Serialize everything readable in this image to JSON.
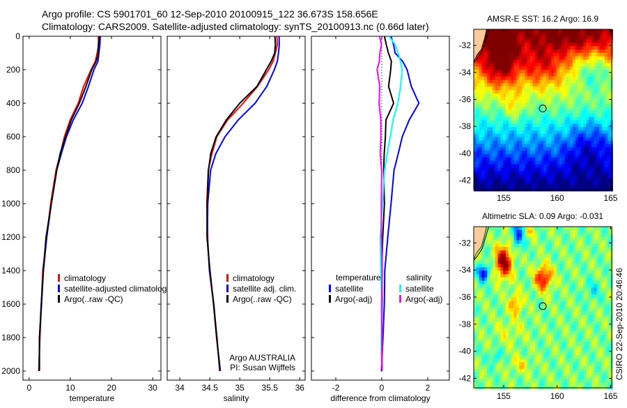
{
  "header": {
    "line1": "Argo profile: CS 5901701_60 12-Sep-2010 20100915_122 36.673S 158.656E",
    "line2": "Climatology: CARS2009. Satellite-adjusted climatology: synTS_20100913.nc (0.66d later)"
  },
  "credit": "CSIRO 22-Sep-2010 20:46:46",
  "colors": {
    "red": "#ff0000",
    "blue": "#0000ff",
    "black": "#000000",
    "cyan": "#00ffff",
    "magenta": "#ff00ff"
  },
  "chart_data": [
    {
      "type": "line",
      "xlabel": "temperature",
      "ylabel": "",
      "xlim": [
        -1.5,
        32
      ],
      "ylim": [
        2054,
        0
      ],
      "xticks": [
        "0",
        "10",
        "20",
        "30"
      ],
      "xtick_values": [
        0,
        10,
        20,
        30
      ],
      "yticks": [
        "0",
        "200",
        "400",
        "600",
        "800",
        "1000",
        "1200",
        "1400",
        "1600",
        "1800",
        "2000"
      ],
      "ytick_values": [
        0,
        200,
        400,
        600,
        800,
        1000,
        1200,
        1400,
        1600,
        1800,
        2000
      ],
      "depth": [
        0,
        50,
        100,
        150,
        200,
        300,
        400,
        500,
        600,
        700,
        800,
        1000,
        1200,
        1400,
        1600,
        1800,
        2000
      ],
      "series": [
        {
          "name": "climatology",
          "color": "#ff0000",
          "values": [
            16.8,
            16.8,
            16.6,
            16,
            15,
            13.3,
            11.8,
            10,
            8.6,
            7.5,
            6.6,
            5.2,
            4.2,
            3.4,
            2.9,
            2.6,
            2.4
          ]
        },
        {
          "name": "satellite-adjusted climatology",
          "color": "#0000ff",
          "values": [
            17.2,
            17.2,
            17,
            16.6,
            15.8,
            14.4,
            12.8,
            10.8,
            9,
            7.8,
            6.8,
            5.3,
            4.3,
            3.5,
            2.9,
            2.6,
            2.4
          ]
        },
        {
          "name": "Argo(..raw -QC)",
          "color": "#000000",
          "values": [
            16.9,
            16.9,
            16.8,
            16.2,
            15.3,
            13.7,
            12.2,
            10.3,
            8.7,
            7.6,
            6.7,
            5.3,
            4.2,
            3.4,
            2.9,
            2.6,
            2.4
          ]
        }
      ],
      "legend": {
        "placement": "lower-center",
        "header_left": "",
        "header_right": ""
      },
      "annotations": []
    },
    {
      "type": "line",
      "xlabel": "salinity",
      "xlim": [
        33.79,
        36.09
      ],
      "ylim": [
        2054,
        0
      ],
      "xticks": [
        "34",
        "34.5",
        "35",
        "35.5",
        "36"
      ],
      "xtick_values": [
        34,
        34.5,
        35,
        35.5,
        36
      ],
      "depth": [
        0,
        50,
        100,
        150,
        200,
        300,
        400,
        500,
        600,
        700,
        800,
        1000,
        1200,
        1400,
        1600,
        1800,
        2000
      ],
      "series": [
        {
          "name": "climatology",
          "color": "#ff0000",
          "values": [
            35.62,
            35.62,
            35.6,
            35.55,
            35.48,
            35.3,
            35.05,
            34.8,
            34.62,
            34.53,
            34.48,
            34.45,
            34.46,
            34.5,
            34.56,
            34.62,
            34.67
          ]
        },
        {
          "name": "satellite adj. clim.",
          "color": "#0000ff",
          "values": [
            35.65,
            35.66,
            35.65,
            35.62,
            35.58,
            35.45,
            35.25,
            34.98,
            34.75,
            34.6,
            34.52,
            34.46,
            34.46,
            34.5,
            34.56,
            34.62,
            34.67
          ]
        },
        {
          "name": "Argo(..raw -QC)",
          "color": "#000000",
          "values": [
            35.58,
            35.6,
            35.58,
            35.52,
            35.45,
            35.28,
            35.0,
            34.78,
            34.6,
            34.52,
            34.48,
            34.45,
            34.46,
            34.5,
            34.56,
            34.62,
            34.67
          ]
        }
      ],
      "legend": {
        "placement": "lower-right"
      },
      "annotations": [
        "Argo AUSTRALIA",
        "PI: Susan Wijffels"
      ]
    },
    {
      "type": "line",
      "xlabel": "difference from climatology",
      "xlim": [
        -3.06,
        2.94
      ],
      "ylim": [
        2054,
        0
      ],
      "xticks": [
        "-2",
        "0",
        "2"
      ],
      "xtick_values": [
        -2,
        0,
        2
      ],
      "depth": [
        0,
        50,
        100,
        150,
        200,
        300,
        400,
        500,
        600,
        700,
        800,
        1000,
        1200,
        1400,
        1600,
        1800,
        2000
      ],
      "series": [
        {
          "name": "satellite",
          "group": "temperature",
          "color": "#0000ff",
          "values": [
            0.4,
            0.5,
            0.6,
            0.9,
            1.1,
            1.3,
            1.6,
            1.2,
            0.9,
            0.7,
            0.55,
            0.4,
            0.25,
            0.15,
            0.1,
            0.05,
            0.0
          ]
        },
        {
          "name": "Argo(-adj)",
          "group": "temperature",
          "color": "#000000",
          "values": [
            0.1,
            0.2,
            0.3,
            0.4,
            0.4,
            0.3,
            0.5,
            0.2,
            0.15,
            0.1,
            0.1,
            0.1,
            0.05,
            0.0,
            0.0,
            0.0,
            0.0
          ]
        },
        {
          "name": "satellite",
          "group": "salinity",
          "color": "#00ffff",
          "values": [
            0.3,
            0.6,
            0.7,
            0.8,
            0.9,
            0.8,
            0.7,
            0.5,
            0.35,
            0.25,
            0.12,
            0.02,
            -0.05,
            -0.05,
            0,
            0,
            0
          ]
        },
        {
          "name": "Argo(-adj)",
          "group": "salinity",
          "color": "#ff00ff",
          "values": [
            -0.1,
            0.0,
            -0.1,
            -0.1,
            -0.2,
            -0.1,
            -0.1,
            -0.05,
            -0.05,
            -0.05,
            -0.02,
            -0.02,
            0,
            0,
            0,
            0,
            0
          ]
        }
      ],
      "legend": {
        "placement": "lower-center",
        "header_left": "temperature",
        "header_right": "salinity"
      }
    },
    {
      "type": "heatmap",
      "title": "AMSR-E SST: 16.2 Argo: 16.9",
      "xlim": [
        152.2,
        165.1
      ],
      "ylim": [
        -42.7,
        -30.8
      ],
      "xticks": [
        "155",
        "160",
        "165"
      ],
      "xtick_values": [
        155,
        160,
        165
      ],
      "yticks": [
        "-32",
        "-34",
        "-36",
        "-38",
        "-40",
        "-42"
      ],
      "ytick_values": [
        -32,
        -34,
        -36,
        -38,
        -40,
        -42
      ],
      "argo_position": {
        "lon": 158.656,
        "lat": -36.673
      },
      "field": "sst"
    },
    {
      "type": "heatmap",
      "title": "Altimetric SLA: 0.09 Argo: -0.031",
      "xlim": [
        152.2,
        165.1
      ],
      "ylim": [
        -42.7,
        -30.8
      ],
      "xticks": [
        "155",
        "160",
        "165"
      ],
      "xtick_values": [
        155,
        160,
        165
      ],
      "yticks": [
        "-32",
        "-34",
        "-36",
        "-38",
        "-40",
        "-42"
      ],
      "ytick_values": [
        -32,
        -34,
        -36,
        -38,
        -40,
        -42
      ],
      "argo_position": {
        "lon": 158.656,
        "lat": -36.673
      },
      "field": "sla"
    }
  ]
}
